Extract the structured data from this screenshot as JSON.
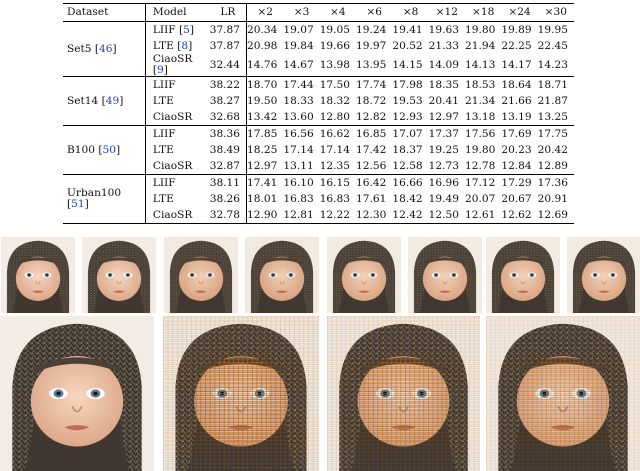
{
  "table": {
    "columns": [
      "Dataset",
      "Model",
      "LR",
      "×2",
      "×3",
      "×4",
      "×6",
      "×8",
      "×12",
      "×18",
      "×24",
      "×30"
    ],
    "groups": [
      {
        "dataset": "Set5",
        "ref": "46",
        "rows": [
          {
            "model": "LIIF",
            "ref": "5",
            "values": [
              "37.87",
              "20.34",
              "19.07",
              "19.05",
              "19.24",
              "19.41",
              "19.63",
              "19.80",
              "19.89",
              "19.95"
            ]
          },
          {
            "model": "LTE",
            "ref": "8",
            "values": [
              "37.87",
              "20.98",
              "19.84",
              "19.66",
              "19.97",
              "20.52",
              "21.33",
              "21.94",
              "22.25",
              "22.45"
            ]
          },
          {
            "model": "CiaoSR",
            "ref": "9",
            "values": [
              "32.44",
              "14.76",
              "14.67",
              "13.98",
              "13.95",
              "14.15",
              "14.09",
              "14.13",
              "14.17",
              "14.23"
            ]
          }
        ]
      },
      {
        "dataset": "Set14",
        "ref": "49",
        "rows": [
          {
            "model": "LIIF",
            "ref": "",
            "values": [
              "38.22",
              "18.70",
              "17.44",
              "17.50",
              "17.74",
              "17.98",
              "18.35",
              "18.53",
              "18.64",
              "18.71"
            ]
          },
          {
            "model": "LTE",
            "ref": "",
            "values": [
              "38.27",
              "19.50",
              "18.33",
              "18.32",
              "18.72",
              "19.53",
              "20.41",
              "21.34",
              "21.66",
              "21.87"
            ]
          },
          {
            "model": "CiaoSR",
            "ref": "",
            "values": [
              "32.68",
              "13.42",
              "13.60",
              "12.80",
              "12.82",
              "12.93",
              "12.97",
              "13.18",
              "13.19",
              "13.25"
            ]
          }
        ]
      },
      {
        "dataset": "B100",
        "ref": "50",
        "rows": [
          {
            "model": "LIIF",
            "ref": "",
            "values": [
              "38.36",
              "17.85",
              "16.56",
              "16.62",
              "16.85",
              "17.07",
              "17.37",
              "17.56",
              "17.69",
              "17.75"
            ]
          },
          {
            "model": "LTE",
            "ref": "",
            "values": [
              "38.49",
              "18.25",
              "17.14",
              "17.14",
              "17.42",
              "18.37",
              "19.25",
              "19.80",
              "20.23",
              "20.42"
            ]
          },
          {
            "model": "CiaoSR",
            "ref": "",
            "values": [
              "32.87",
              "12.97",
              "13.11",
              "12.35",
              "12.56",
              "12.58",
              "12.73",
              "12.78",
              "12.84",
              "12.89"
            ]
          }
        ]
      },
      {
        "dataset": "Urban100",
        "ref": "51",
        "rows": [
          {
            "model": "LIIF",
            "ref": "",
            "values": [
              "38.11",
              "17.41",
              "16.10",
              "16.15",
              "16.42",
              "16.66",
              "16.96",
              "17.12",
              "17.29",
              "17.36"
            ]
          },
          {
            "model": "LTE",
            "ref": "",
            "values": [
              "38.26",
              "18.01",
              "16.83",
              "16.83",
              "17.61",
              "18.42",
              "19.49",
              "20.07",
              "20.67",
              "20.91"
            ]
          },
          {
            "model": "CiaoSR",
            "ref": "",
            "values": [
              "32.78",
              "12.90",
              "12.81",
              "12.22",
              "12.30",
              "12.42",
              "12.50",
              "12.61",
              "12.62",
              "12.69"
            ]
          }
        ]
      }
    ]
  },
  "colors": {
    "reference_link": "#1a3fd6",
    "hat_knit": "#5d5246",
    "skin": "#f0c6a8",
    "artifact_grid": "#b9742a"
  },
  "figure": {
    "small_panel_count": 8,
    "large_panel_count": 4,
    "large_panels": [
      {
        "artifact_level": 0
      },
      {
        "artifact_level": 0.9
      },
      {
        "artifact_level": 0.75
      },
      {
        "artifact_level": 0.55
      }
    ],
    "small_panels": [
      {
        "artifact_level": 0
      },
      {
        "artifact_level": 0
      },
      {
        "artifact_level": 0.15
      },
      {
        "artifact_level": 0.15
      },
      {
        "artifact_level": 0.1
      },
      {
        "artifact_level": 0.1
      },
      {
        "artifact_level": 0.1
      },
      {
        "artifact_level": 0.1
      }
    ]
  }
}
